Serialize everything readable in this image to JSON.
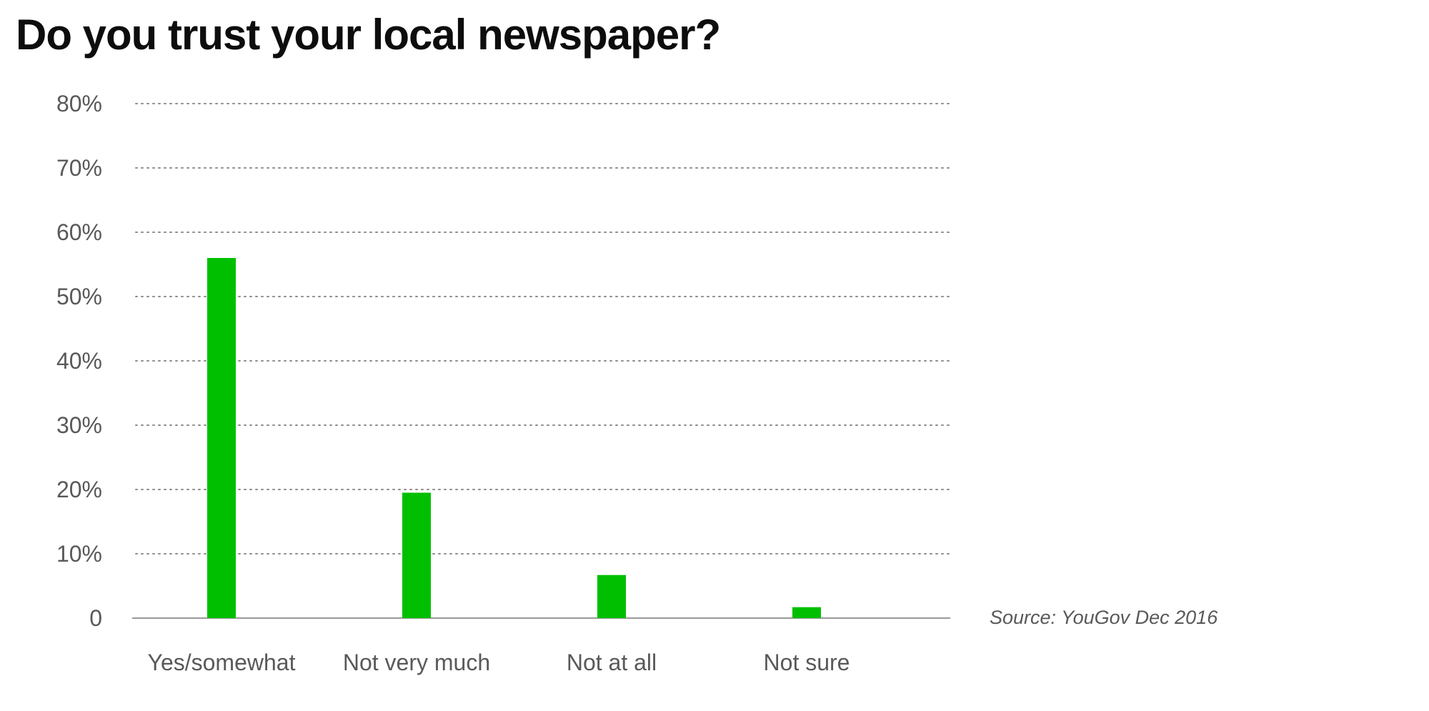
{
  "chart_data": {
    "type": "bar",
    "title": "Do you trust your local newspaper?",
    "categories": [
      "Yes/somewhat",
      "Not very much",
      "Not at all",
      "Not sure"
    ],
    "values": [
      56,
      19.5,
      6.7,
      1.7
    ],
    "unit": "%",
    "xlabel": "",
    "ylabel": "",
    "ylim": [
      0,
      80
    ],
    "yticks": [
      0,
      10,
      20,
      30,
      40,
      50,
      60,
      70,
      80
    ],
    "ytick_labels": [
      "0",
      "10%",
      "20%",
      "30%",
      "40%",
      "50%",
      "60%",
      "70%",
      "80%"
    ],
    "grid": true,
    "grid_style": "dotted",
    "legend": "none",
    "bar_color": "#00bf00",
    "source": "Source: YouGov Dec 2016"
  }
}
